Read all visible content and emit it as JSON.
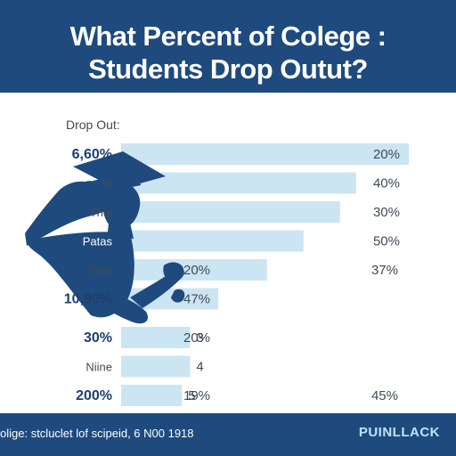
{
  "title_line1": "What Percent of Colege :",
  "title_line2": "Students Drop Outut?",
  "axis_caption": "Drop Out:",
  "footer_note": "olige: stcluclet lof scipeid, 6 N00 1918",
  "brand": "PUINLLACK",
  "colors": {
    "header": "#1e4a7e",
    "bar": "#cce5f3",
    "label_dark": "#1e3f6e",
    "text": "#404a56",
    "silhouette": "#1e4a7e"
  },
  "icons": [
    "graduate-silhouette-icon"
  ],
  "chart_data": {
    "type": "bar",
    "orientation": "horizontal",
    "grid": false,
    "rows": [
      {
        "label": "6,60%",
        "inside_value": "",
        "right_value": "20%",
        "far_value": "",
        "bar": 0.71
      },
      {
        "label": "Te",
        "inside_value": "",
        "right_value": "40%",
        "far_value": "",
        "bar": 0.58
      },
      {
        "label": "Thei",
        "inside_value": "",
        "right_value": "30%",
        "far_value": "",
        "bar": 0.54
      },
      {
        "label": "Patas",
        "inside_value": "",
        "right_value": "50%",
        "far_value": "",
        "bar": 0.45
      },
      {
        "label": "Tege",
        "inside_value": "20%",
        "right_value": "",
        "far_value": "37%",
        "bar": 0.36
      },
      {
        "label": "10,90%",
        "inside_value": "47%",
        "right_value": "",
        "far_value": "",
        "bar": 0.24
      },
      {
        "label": "30%",
        "inside_value": "20%",
        "right_value": "3",
        "far_value": "",
        "bar": 0.17
      },
      {
        "label": "Niine",
        "inside_value": "",
        "right_value": "4",
        "far_value": "",
        "bar": 0.17
      },
      {
        "label": "200%",
        "inside_value": "19%",
        "right_value": "5",
        "far_value": "45%",
        "bar": 0.15
      }
    ]
  }
}
